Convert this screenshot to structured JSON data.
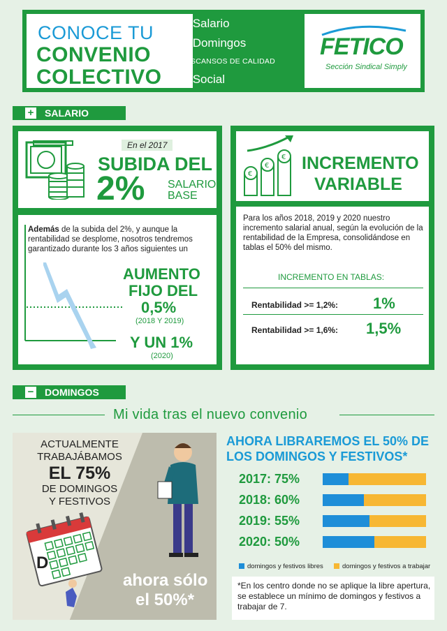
{
  "header": {
    "title_line1": "CONOCE TU",
    "title_line2": "CONVENIO",
    "title_line3": "COLECTIVO",
    "item_salario": "Salario",
    "item_domingos": "Domingos",
    "item_descansos": "DESCANSOS DE CALIDAD",
    "item_social": "Social",
    "sym_plus": "+",
    "sym_minus": "−",
    "logo": "FETICO",
    "logo_sub": "Sección Sindical Simply"
  },
  "salario": {
    "section_label": "SALARIO",
    "left": {
      "year_tag": "En el 2017",
      "subida": "SUBIDA DEL",
      "percent": "2%",
      "salario": "SALARIO",
      "base": "BASE",
      "text_bold": "Además",
      "text_rest": " de la subida del 2%, y aunque la rentabilidad se desplome, nosotros tendremos garantizado durante los 3 años siguientes un",
      "aumento": "AUMENTO",
      "fijo_del": "FIJO DEL",
      "aumento_value": "0,5%",
      "aumento_years": "(2018 Y 2019)",
      "y_un": "Y UN 1%",
      "y_un_year": "(2020)"
    },
    "right": {
      "title1": "INCREMENTO",
      "title2": "VARIABLE",
      "text": "Para los años 2018, 2019 y 2020 nuestro incremento salarial anual, según la evolución de la rentabilidad de la Empresa, consolidándose en tablas el 50% del mismo.",
      "tablas_title": "INCREMENTO EN TABLAS:",
      "rows": [
        {
          "label": "Rentabilidad >= 1,2%:",
          "value": "1%"
        },
        {
          "label": "Rentabilidad >= 1,6%:",
          "value": "1,5%"
        }
      ]
    }
  },
  "domingos": {
    "section_label": "DOMINGOS",
    "subtitle": "Mi vida tras el nuevo convenio",
    "left": {
      "line1": "ACTUALMENTE",
      "line2": "TRABAJÁBAMOS",
      "pct": "EL 75%",
      "line3": "DE DOMINGOS",
      "line4": "Y FESTIVOS",
      "calendar_letter": "D",
      "ahora1": "ahora sólo",
      "ahora2": "el 50%*"
    },
    "right": {
      "title1": "AHORA LIBRAREMOS EL 50% DE",
      "title2": "LOS DOMINGOS Y FESTIVOS*",
      "bars": [
        {
          "label": "2017: 75%",
          "libres": 0.25
        },
        {
          "label": "2018: 60%",
          "libres": 0.4
        },
        {
          "label": "2019: 55%",
          "libres": 0.45
        },
        {
          "label": "2020: 50%",
          "libres": 0.5
        }
      ],
      "legend_libres": "domingos y festivos libres",
      "legend_trabajar": "domingos y festivos a trabajar",
      "note": "*En los centro donde no se aplique la libre apertura, se establece un mínimo de domingos y festivos a trabajar de 7."
    },
    "colors": {
      "libres": "#1e8ed8",
      "trabajar": "#f7b733"
    }
  }
}
